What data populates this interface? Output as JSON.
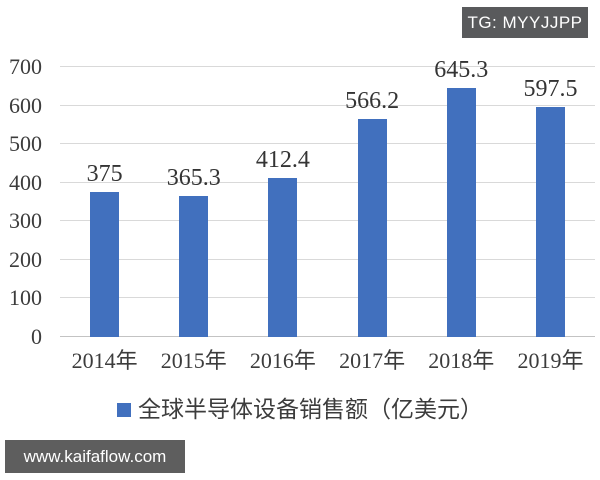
{
  "badge": {
    "label": "TG: MYYJJPP"
  },
  "watermark": {
    "label": "www.kaifaflow.com"
  },
  "colors": {
    "bar": "#4170BE",
    "grid": "#D9D9D9",
    "baseline": "#C3C3C3",
    "text": "#3C3C3C",
    "badge_bg": "#595A5C",
    "watermark_bg": "#5E5E5E"
  },
  "chart_data": {
    "type": "bar",
    "categories": [
      "2014年",
      "2015年",
      "2016年",
      "2017年",
      "2018年",
      "2019年"
    ],
    "values": [
      375,
      365.3,
      412.4,
      566.2,
      645.3,
      597.5
    ],
    "value_labels": [
      "375",
      "365.3",
      "412.4",
      "566.2",
      "645.3",
      "597.5"
    ],
    "title": "",
    "xlabel": "",
    "ylabel": "",
    "ylim": [
      0,
      700
    ],
    "yticks": [
      0,
      100,
      200,
      300,
      400,
      500,
      600,
      700
    ],
    "grid": true,
    "legend": [
      "全球半导体设备销售额（亿美元）"
    ],
    "legend_position": "bottom"
  }
}
